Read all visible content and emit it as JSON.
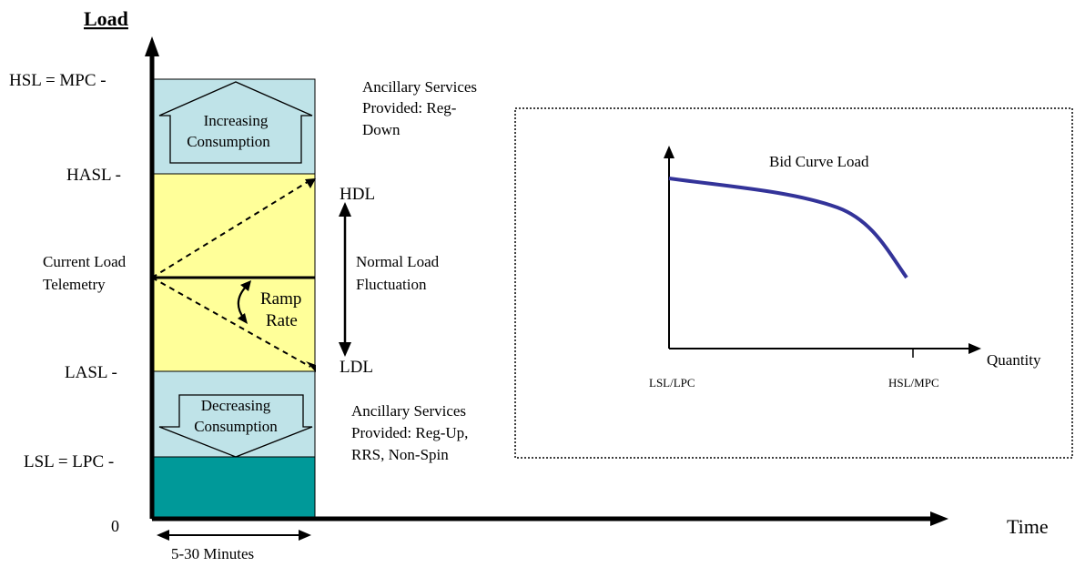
{
  "left_diagram": {
    "y_axis_title": "Load",
    "x_axis_title": "Time",
    "origin_label": "0",
    "duration_label": "5-30 Minutes",
    "level_labels": {
      "hsl": "HSL = MPC -",
      "hasl": "HASL  -",
      "current_1": "Current Load",
      "current_2": "Telemetry",
      "lasl": "LASL  -",
      "lsl": "LSL = LPC -"
    },
    "increasing_1": "Increasing",
    "increasing_2": "Consumption",
    "decreasing_1": "Decreasing",
    "decreasing_2": "Consumption",
    "ramp_1": "Ramp",
    "ramp_2": "Rate",
    "hdl": "HDL",
    "ldl": "LDL",
    "normal_1": "Normal Load",
    "normal_2": "Fluctuation",
    "as_down": [
      "Ancillary Services",
      "Provided: Reg-",
      "Down"
    ],
    "as_up": [
      "Ancillary Services",
      "Provided: Reg-Up,",
      "RRS, Non-Spin"
    ]
  },
  "bid_curve": {
    "title": "Bid Curve Load",
    "x_label": "Quantity",
    "tick_left": "LSL/LPC",
    "tick_right": "HSL/MPC"
  },
  "colors": {
    "band_blue": "#bfe3e8",
    "band_yellow": "#ffff99",
    "band_teal": "#009999",
    "curve": "#333399"
  }
}
